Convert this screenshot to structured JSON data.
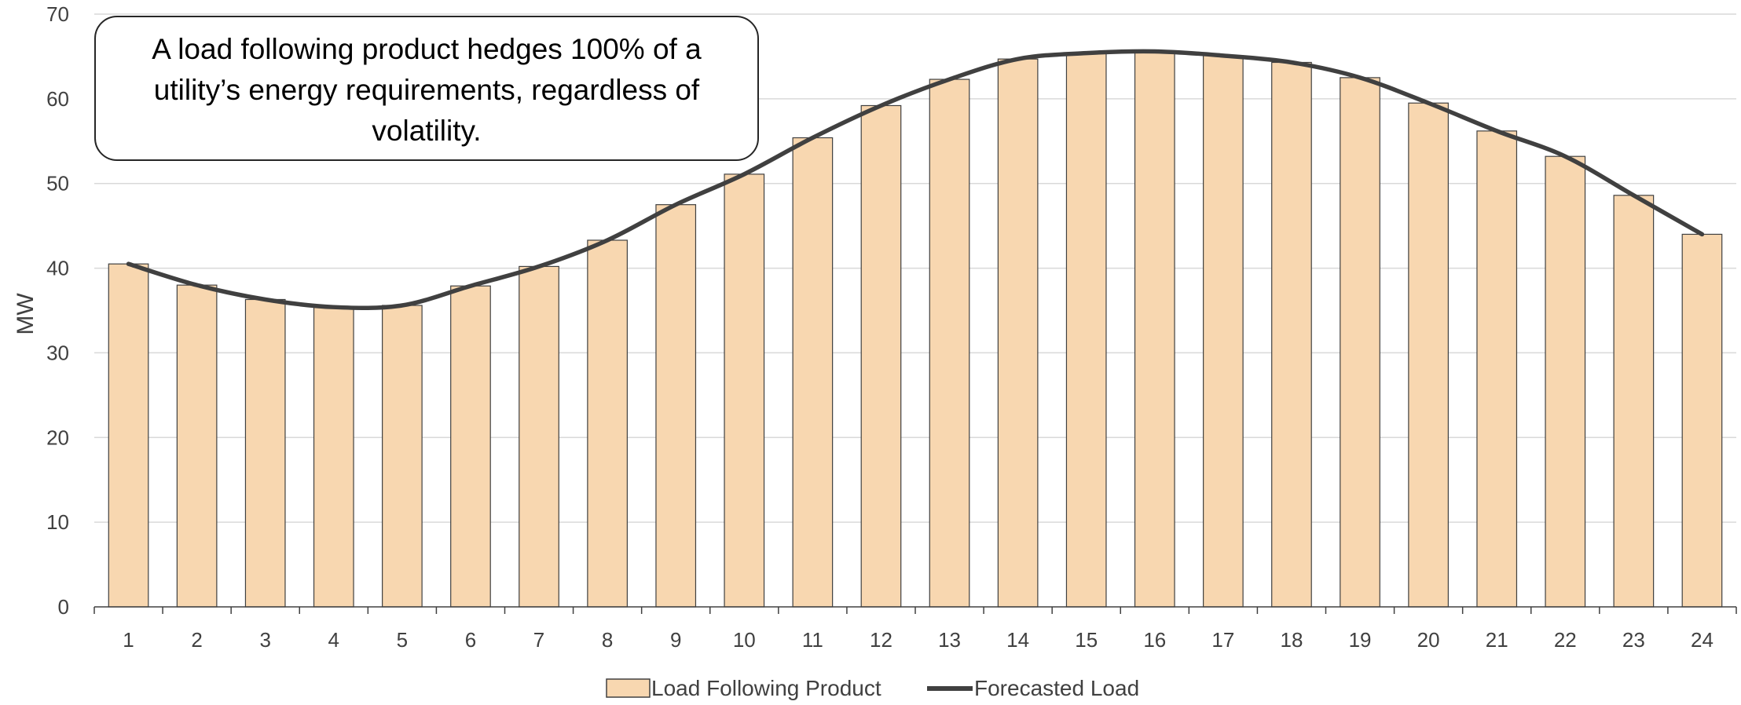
{
  "chart_data": {
    "type": "bar",
    "ylabel": "MW",
    "xlabel": "",
    "ylim": [
      0,
      70
    ],
    "yticks": [
      0,
      10,
      20,
      30,
      40,
      50,
      60,
      70
    ],
    "grid": true,
    "legend_position": "bottom",
    "categories": [
      "1",
      "2",
      "3",
      "4",
      "5",
      "6",
      "7",
      "8",
      "9",
      "10",
      "11",
      "12",
      "13",
      "14",
      "15",
      "16",
      "17",
      "18",
      "19",
      "20",
      "21",
      "22",
      "23",
      "24"
    ],
    "series": [
      {
        "name": "Load Following Product",
        "kind": "bar",
        "color": "#f8d7b0",
        "values": [
          40.5,
          38.0,
          36.3,
          35.4,
          35.6,
          37.9,
          40.2,
          43.3,
          47.5,
          51.1,
          55.4,
          59.2,
          62.3,
          64.7,
          65.4,
          65.6,
          65.1,
          64.3,
          62.5,
          59.5,
          56.2,
          53.2,
          48.6,
          44.0
        ]
      },
      {
        "name": "Forecasted Load",
        "kind": "line",
        "color": "#404040",
        "values": [
          40.5,
          38.0,
          36.3,
          35.4,
          35.6,
          37.9,
          40.2,
          43.3,
          47.5,
          51.1,
          55.4,
          59.2,
          62.3,
          64.7,
          65.4,
          65.6,
          65.1,
          64.3,
          62.5,
          59.5,
          56.2,
          53.2,
          48.6,
          44.0
        ]
      }
    ],
    "annotation": {
      "lines": [
        "A load following product hedges 100% of a",
        "utility’s energy requirements, regardless of",
        "volatility."
      ]
    }
  }
}
